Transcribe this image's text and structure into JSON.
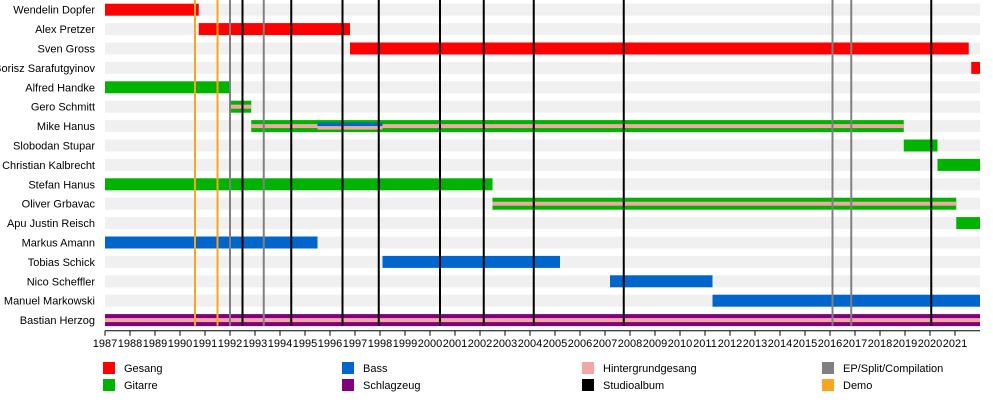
{
  "chart_data": {
    "type": "timeline",
    "x_range": [
      1987,
      2022
    ],
    "axis_ticks": [
      "1987",
      "1988",
      "1989",
      "1990",
      "1991",
      "1992",
      "1993",
      "1994",
      "1995",
      "1996",
      "1997",
      "1998",
      "1999",
      "2000",
      "2001",
      "2002",
      "2003",
      "2004",
      "2005",
      "2006",
      "2007",
      "2008",
      "2009",
      "2010",
      "2011",
      "2012",
      "2013",
      "2014",
      "2015",
      "2016",
      "2017",
      "2018",
      "2019",
      "2020",
      "2021"
    ],
    "members": [
      {
        "name": "Wendelin Dopfer",
        "bars": [
          {
            "start": 1987.0,
            "end": 1990.75,
            "roles": [
              "Gesang"
            ]
          }
        ]
      },
      {
        "name": "Alex Pretzer",
        "bars": [
          {
            "start": 1990.75,
            "end": 1996.8,
            "roles": [
              "Gesang"
            ]
          }
        ]
      },
      {
        "name": "Sven Gross",
        "bars": [
          {
            "start": 1996.8,
            "end": 2021.55,
            "roles": [
              "Gesang"
            ]
          }
        ]
      },
      {
        "name": "Borisz Sarafutgyinov",
        "bars": [
          {
            "start": 2021.65,
            "end": 2022.0,
            "roles": [
              "Gesang"
            ]
          }
        ]
      },
      {
        "name": "Alfred Handke",
        "bars": [
          {
            "start": 1987.0,
            "end": 1992.0,
            "roles": [
              "Gitarre"
            ]
          }
        ]
      },
      {
        "name": "Gero Schmitt",
        "bars": [
          {
            "start": 1992.0,
            "end": 1992.85,
            "roles": [
              "Gitarre",
              "Hintergrundgesang"
            ]
          }
        ]
      },
      {
        "name": "Mike Hanus",
        "bars": [
          {
            "start": 1992.85,
            "end": 1995.5,
            "roles": [
              "Gitarre",
              "Hintergrundgesang"
            ]
          },
          {
            "start": 1995.5,
            "end": 1998.1,
            "roles": [
              "Gitarre",
              "Bass",
              "Hintergrundgesang"
            ]
          },
          {
            "start": 1998.1,
            "end": 2018.95,
            "roles": [
              "Gitarre",
              "Hintergrundgesang"
            ]
          }
        ]
      },
      {
        "name": "Slobodan Stupar",
        "bars": [
          {
            "start": 2018.95,
            "end": 2020.3,
            "roles": [
              "Gitarre"
            ]
          }
        ]
      },
      {
        "name": "Christian Kalbrecht",
        "bars": [
          {
            "start": 2020.3,
            "end": 2022.0,
            "roles": [
              "Gitarre"
            ]
          }
        ]
      },
      {
        "name": "Stefan Hanus",
        "bars": [
          {
            "start": 1987.0,
            "end": 2002.5,
            "roles": [
              "Gitarre"
            ]
          }
        ]
      },
      {
        "name": "Oliver Grbavac",
        "bars": [
          {
            "start": 2002.5,
            "end": 2021.05,
            "roles": [
              "Gitarre",
              "Hintergrundgesang"
            ]
          }
        ]
      },
      {
        "name": "Apu Justin Reisch",
        "bars": [
          {
            "start": 2021.05,
            "end": 2022.0,
            "roles": [
              "Gitarre"
            ]
          }
        ]
      },
      {
        "name": "Markus Amann",
        "bars": [
          {
            "start": 1987.0,
            "end": 1995.5,
            "roles": [
              "Bass"
            ]
          }
        ]
      },
      {
        "name": "Tobias Schick",
        "bars": [
          {
            "start": 1998.1,
            "end": 2005.2,
            "roles": [
              "Bass"
            ]
          }
        ]
      },
      {
        "name": "Nico Scheffler",
        "bars": [
          {
            "start": 2007.2,
            "end": 2011.3,
            "roles": [
              "Bass"
            ]
          }
        ]
      },
      {
        "name": "Manuel Markowski",
        "bars": [
          {
            "start": 2011.3,
            "end": 2022.0,
            "roles": [
              "Bass"
            ]
          }
        ]
      },
      {
        "name": "Bastian Herzog",
        "bars": [
          {
            "start": 1987.0,
            "end": 2022.0,
            "roles": [
              "Schlagzeug",
              "Hintergrundgesang"
            ]
          }
        ]
      }
    ],
    "releases": [
      {
        "year": 1990.6,
        "type": "Demo"
      },
      {
        "year": 1991.5,
        "type": "Demo"
      },
      {
        "year": 1992.0,
        "type": "EP/Split/Compilation"
      },
      {
        "year": 1992.5,
        "type": "Studioalbum"
      },
      {
        "year": 1993.35,
        "type": "EP/Split/Compilation"
      },
      {
        "year": 1994.45,
        "type": "Studioalbum"
      },
      {
        "year": 1996.5,
        "type": "Studioalbum"
      },
      {
        "year": 1997.95,
        "type": "Studioalbum"
      },
      {
        "year": 2000.4,
        "type": "Studioalbum"
      },
      {
        "year": 2002.15,
        "type": "Studioalbum"
      },
      {
        "year": 2004.15,
        "type": "Studioalbum"
      },
      {
        "year": 2007.75,
        "type": "Studioalbum"
      },
      {
        "year": 2016.1,
        "type": "EP/Split/Compilation"
      },
      {
        "year": 2016.85,
        "type": "EP/Split/Compilation"
      },
      {
        "year": 2020.05,
        "type": "Studioalbum"
      }
    ],
    "legend": [
      {
        "label": "Gesang",
        "color": "#ff0000"
      },
      {
        "label": "Gitarre",
        "color": "#00b300"
      },
      {
        "label": "Bass",
        "color": "#0066cc"
      },
      {
        "label": "Schlagzeug",
        "color": "#800080"
      },
      {
        "label": "Hintergrundgesang",
        "color": "#f4a6a6"
      },
      {
        "label": "Studioalbum",
        "color": "#000000"
      },
      {
        "label": "EP/Split/Compilation",
        "color": "#808080"
      },
      {
        "label": "Demo",
        "color": "#f5a623"
      }
    ],
    "grid": true,
    "legend_position": "bottom"
  }
}
